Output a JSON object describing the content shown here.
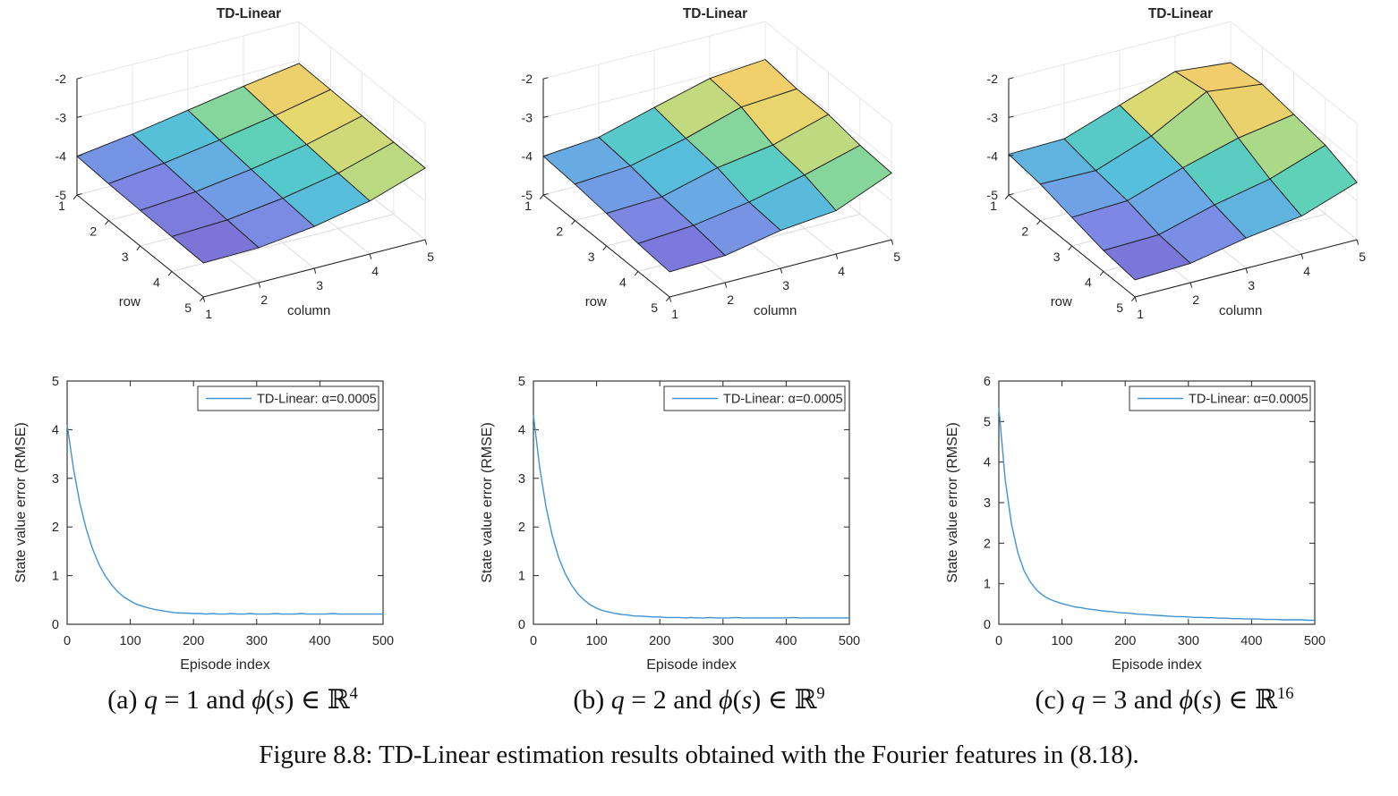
{
  "figure_caption": "Figure 8.8: TD-Linear estimation results obtained with the Fourier features in (8.18).",
  "subcaptions": [
    {
      "parts": [
        {
          "t": "(a) "
        },
        {
          "t": "q",
          "i": 1
        },
        {
          "t": " = 1 and "
        },
        {
          "t": "ϕ",
          "i": 1
        },
        {
          "t": "("
        },
        {
          "t": "s",
          "i": 1
        },
        {
          "t": ") ∈ ℝ"
        },
        {
          "t": "4",
          "sup": 1
        }
      ]
    },
    {
      "parts": [
        {
          "t": "(b) "
        },
        {
          "t": "q",
          "i": 1
        },
        {
          "t": " = 2 and "
        },
        {
          "t": "ϕ",
          "i": 1
        },
        {
          "t": "("
        },
        {
          "t": "s",
          "i": 1
        },
        {
          "t": ") ∈ ℝ"
        },
        {
          "t": "9",
          "sup": 1
        }
      ]
    },
    {
      "parts": [
        {
          "t": "(c) "
        },
        {
          "t": "q",
          "i": 1
        },
        {
          "t": " = 3 and "
        },
        {
          "t": "ϕ",
          "i": 1
        },
        {
          "t": "("
        },
        {
          "t": "s",
          "i": 1
        },
        {
          "t": ") ∈ ℝ"
        },
        {
          "t": "16",
          "sup": 1
        }
      ]
    }
  ],
  "colors": {
    "line": "#4292d2",
    "axis": "#262626",
    "floor_grid": "#dcdcdc",
    "wall_grid": "#e7e7e7",
    "mesh_edge": "#1a1a1a",
    "legend_border": "#333333",
    "title_color": "#000000"
  },
  "colormap_stops": [
    [
      0.0,
      "#7A6FD4"
    ],
    [
      0.12,
      "#7D86E3"
    ],
    [
      0.25,
      "#6CA6E6"
    ],
    [
      0.4,
      "#52C4D6"
    ],
    [
      0.55,
      "#60D3B0"
    ],
    [
      0.68,
      "#A6D98A"
    ],
    [
      0.8,
      "#E4D96E"
    ],
    [
      0.9,
      "#F0CB6B"
    ],
    [
      1.0,
      "#F4E06A"
    ]
  ],
  "chart_data": [
    {
      "type": "surface",
      "title": "TD-Linear",
      "xlabel": "column",
      "ylabel": "row",
      "xticks": [
        1,
        2,
        3,
        4,
        5
      ],
      "yticks": [
        1,
        2,
        3,
        4,
        5
      ],
      "zticks": [
        -2,
        -3,
        -4,
        -5
      ],
      "zlim": [
        -5,
        -2
      ],
      "z": [
        [
          -4.0,
          -3.8,
          -3.55,
          -3.3,
          -3.08
        ],
        [
          -4.05,
          -3.89,
          -3.66,
          -3.4,
          -3.1
        ],
        [
          -4.08,
          -3.97,
          -3.76,
          -3.49,
          -3.12
        ],
        [
          -4.1,
          -4.04,
          -3.85,
          -3.57,
          -3.14
        ],
        [
          -4.12,
          -4.1,
          -3.92,
          -3.63,
          -3.15
        ]
      ]
    },
    {
      "type": "surface",
      "title": "TD-Linear",
      "xlabel": "column",
      "ylabel": "row",
      "xticks": [
        1,
        2,
        3,
        4,
        5
      ],
      "yticks": [
        1,
        2,
        3,
        4,
        5
      ],
      "zticks": [
        -2,
        -3,
        -4,
        -5
      ],
      "zlim": [
        -5,
        -2
      ],
      "z": [
        [
          -4.0,
          -3.88,
          -3.48,
          -3.1,
          -2.98
        ],
        [
          -4.06,
          -3.96,
          -3.62,
          -3.18,
          -3.08
        ],
        [
          -4.16,
          -4.1,
          -3.72,
          -3.5,
          -3.08
        ],
        [
          -4.28,
          -4.18,
          -3.95,
          -3.62,
          -3.22
        ],
        [
          -4.35,
          -4.3,
          -4.02,
          -3.88,
          -3.28
        ]
      ]
    },
    {
      "type": "surface",
      "title": "TD-Linear",
      "xlabel": "column",
      "ylabel": "row",
      "xticks": [
        1,
        2,
        3,
        4,
        5
      ],
      "yticks": [
        1,
        2,
        3,
        4,
        5
      ],
      "zticks": [
        -2,
        -3,
        -4,
        -5
      ],
      "zlim": [
        -5,
        -2
      ],
      "z": [
        [
          -3.95,
          -3.92,
          -3.42,
          -2.92,
          -3.06
        ],
        [
          -4.06,
          -4.08,
          -3.56,
          -2.78,
          -2.96
        ],
        [
          -4.26,
          -4.2,
          -3.72,
          -3.32,
          -3.08
        ],
        [
          -4.46,
          -4.42,
          -4.02,
          -3.72,
          -3.22
        ],
        [
          -4.56,
          -4.5,
          -4.22,
          -4.02,
          -3.52
        ]
      ]
    },
    {
      "type": "line",
      "xlabel": "Episode index",
      "ylabel": "State value error (RMSE)",
      "legend": "TD-Linear: α=0.0005",
      "xlim": [
        0,
        500
      ],
      "ylim": [
        0,
        5
      ],
      "xticks": [
        0,
        100,
        200,
        300,
        400,
        500
      ],
      "yticks": [
        0,
        1,
        2,
        3,
        4,
        5
      ],
      "episodes": {
        "start": 0,
        "step": 10,
        "count": 51
      },
      "y": [
        4.1,
        3.2,
        2.5,
        1.97,
        1.56,
        1.24,
        1.0,
        0.82,
        0.67,
        0.56,
        0.48,
        0.41,
        0.37,
        0.33,
        0.3,
        0.28,
        0.26,
        0.24,
        0.23,
        0.23,
        0.22,
        0.22,
        0.21,
        0.22,
        0.21,
        0.21,
        0.22,
        0.21,
        0.21,
        0.22,
        0.21,
        0.21,
        0.21,
        0.22,
        0.21,
        0.21,
        0.21,
        0.22,
        0.21,
        0.21,
        0.21,
        0.21,
        0.22,
        0.21,
        0.21,
        0.21,
        0.21,
        0.21,
        0.21,
        0.21,
        0.21
      ]
    },
    {
      "type": "line",
      "xlabel": "Episode index",
      "ylabel": "State value error (RMSE)",
      "legend": "TD-Linear: α=0.0005",
      "xlim": [
        0,
        500
      ],
      "ylim": [
        0,
        5
      ],
      "xticks": [
        0,
        100,
        200,
        300,
        400,
        500
      ],
      "yticks": [
        0,
        1,
        2,
        3,
        4,
        5
      ],
      "episodes": {
        "start": 0,
        "step": 10,
        "count": 51
      },
      "y": [
        4.3,
        3.21,
        2.41,
        1.81,
        1.37,
        1.05,
        0.81,
        0.63,
        0.5,
        0.4,
        0.33,
        0.28,
        0.25,
        0.22,
        0.2,
        0.19,
        0.17,
        0.17,
        0.16,
        0.15,
        0.15,
        0.14,
        0.14,
        0.14,
        0.13,
        0.14,
        0.13,
        0.13,
        0.14,
        0.13,
        0.13,
        0.13,
        0.14,
        0.13,
        0.13,
        0.13,
        0.13,
        0.13,
        0.13,
        0.13,
        0.13,
        0.14,
        0.13,
        0.13,
        0.13,
        0.13,
        0.13,
        0.13,
        0.13,
        0.13,
        0.13
      ]
    },
    {
      "type": "line",
      "xlabel": "Episode index",
      "ylabel": "State value error (RMSE)",
      "legend": "TD-Linear: α=0.0005",
      "xlim": [
        0,
        500
      ],
      "ylim": [
        0,
        6
      ],
      "xticks": [
        0,
        100,
        200,
        300,
        400,
        500
      ],
      "yticks": [
        0,
        1,
        2,
        3,
        4,
        5,
        6
      ],
      "episodes": {
        "start": 0,
        "step": 10,
        "count": 51
      },
      "y": [
        5.35,
        3.57,
        2.48,
        1.77,
        1.32,
        1.04,
        0.84,
        0.71,
        0.62,
        0.56,
        0.51,
        0.47,
        0.43,
        0.41,
        0.38,
        0.36,
        0.34,
        0.32,
        0.31,
        0.29,
        0.28,
        0.27,
        0.25,
        0.24,
        0.23,
        0.22,
        0.21,
        0.2,
        0.19,
        0.19,
        0.18,
        0.17,
        0.17,
        0.16,
        0.16,
        0.15,
        0.15,
        0.14,
        0.14,
        0.13,
        0.13,
        0.13,
        0.12,
        0.12,
        0.12,
        0.11,
        0.11,
        0.11,
        0.11,
        0.1,
        0.1
      ]
    }
  ]
}
